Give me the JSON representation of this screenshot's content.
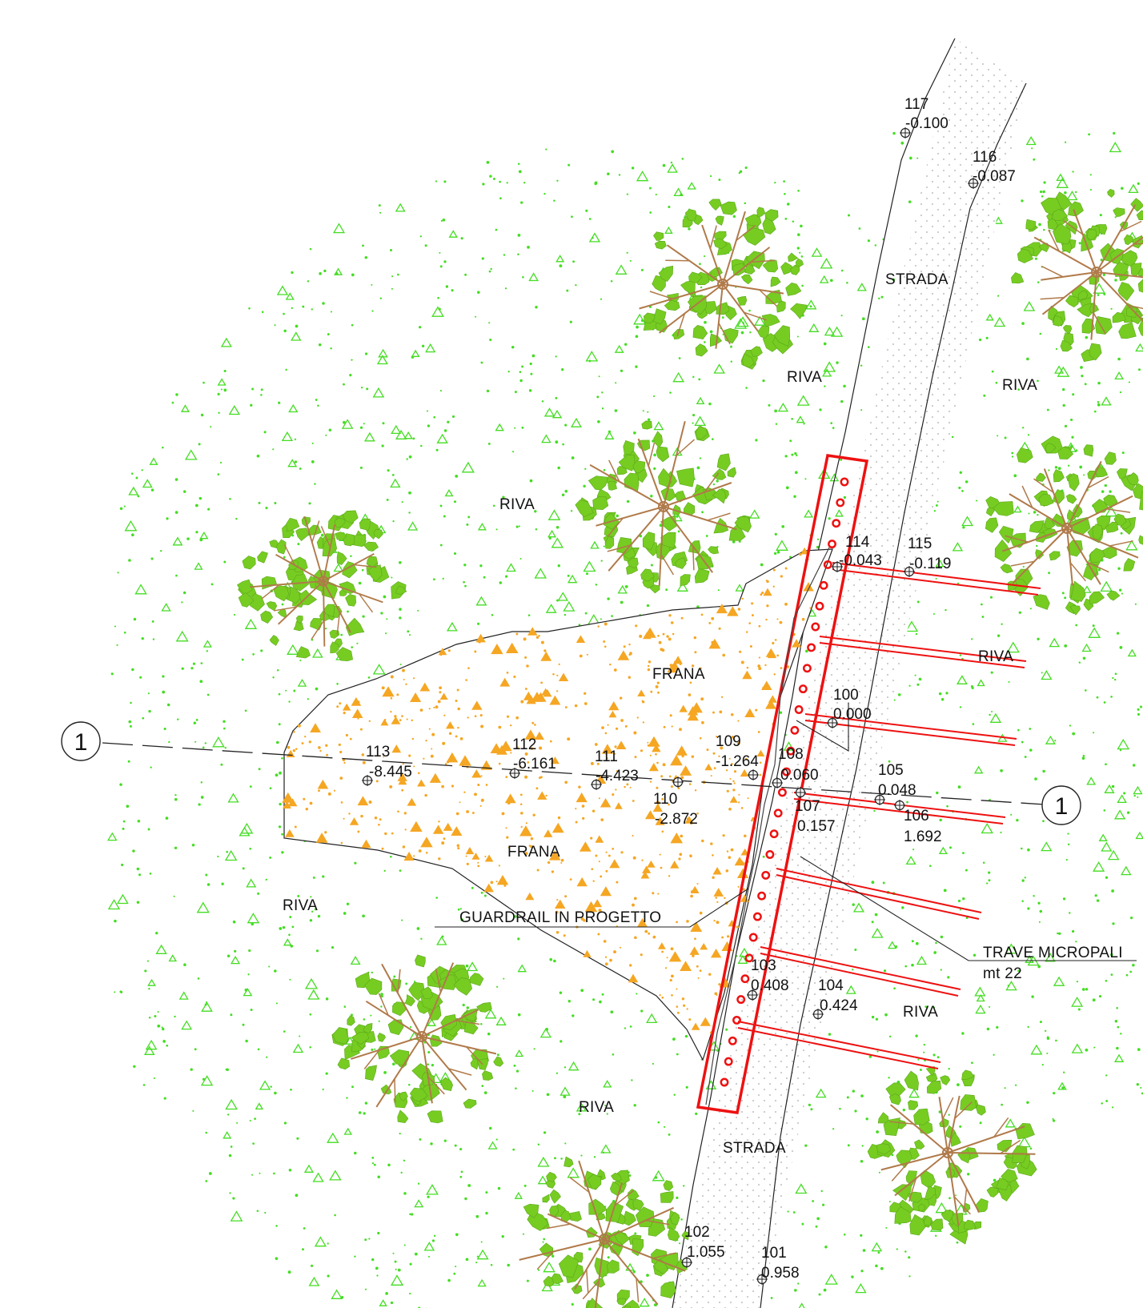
{
  "colors": {
    "vegetation": "#44dd22",
    "landslide": "#f5a623",
    "beam": "#ee1111",
    "road_fill": "#dcdcdc",
    "tree_canopy": "#77cc22",
    "tree_branch": "#b07a4a",
    "line": "#222222"
  },
  "section": {
    "left": "1",
    "right": "1"
  },
  "labels": {
    "strada_top": "STRADA",
    "strada_bottom": "STRADA",
    "riva_1": "RIVA",
    "riva_2": "RIVA",
    "riva_3": "RIVA",
    "riva_4": "RIVA",
    "riva_5": "RIVA",
    "riva_6": "RIVA",
    "riva_7": "RIVA",
    "frana_top": "FRANA",
    "frana_bottom": "FRANA",
    "guardrail": "GUARDRAIL IN PROGETTO",
    "trave_1": "TRAVE MICROPALI",
    "trave_2": "mt 22"
  },
  "points": [
    {
      "id": "117",
      "elev": "-0.100"
    },
    {
      "id": "116",
      "elev": "-0.087"
    },
    {
      "id": "114",
      "elev": "-0.043"
    },
    {
      "id": "115",
      "elev": "-0.119"
    },
    {
      "id": "100",
      "elev": "0.000"
    },
    {
      "id": "113",
      "elev": "-8.445"
    },
    {
      "id": "112",
      "elev": "-6.161"
    },
    {
      "id": "111",
      "elev": "-4.423"
    },
    {
      "id": "110",
      "elev": "-2.872"
    },
    {
      "id": "109",
      "elev": "-1.264"
    },
    {
      "id": "108",
      "elev": "0.060"
    },
    {
      "id": "107",
      "elev": "0.157"
    },
    {
      "id": "105",
      "elev": "0.048"
    },
    {
      "id": "106",
      "elev": "1.692"
    },
    {
      "id": "103",
      "elev": "0.408"
    },
    {
      "id": "104",
      "elev": "0.424"
    },
    {
      "id": "102",
      "elev": "1.055"
    },
    {
      "id": "101",
      "elev": "0.958"
    }
  ]
}
